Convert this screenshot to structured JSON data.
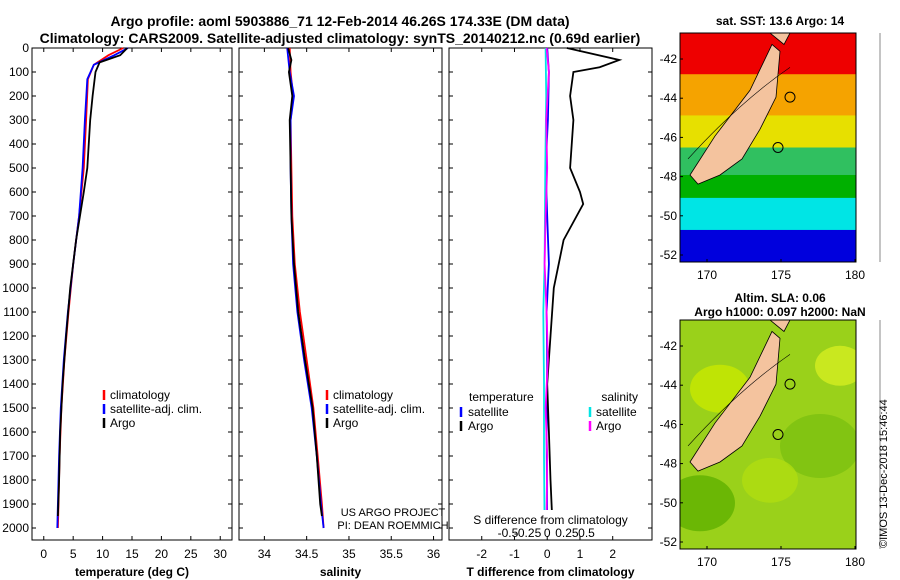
{
  "header": {
    "line1": "Argo profile: aoml 5903886_71 12-Feb-2014 46.26S 174.33E (DM data)",
    "line2": "Climatology: CARS2009. Satellite-adjusted climatology: synTS_20140212.nc (0.69d earlier)"
  },
  "credits": {
    "project": "US ARGO PROJECT",
    "pi": "PI: DEAN ROEMMICH"
  },
  "stamp": "©IMOS 13-Dec-2018 15:46:44",
  "colors": {
    "climatology": "#ff0000",
    "satellite": "#0000ff",
    "argo": "#000000",
    "satellite_salinity": "#00e5e5",
    "argo_salinity": "#ff00ff",
    "land": "#f4c39e"
  },
  "chart_data": [
    {
      "type": "line",
      "xlabel": "temperature (deg C)",
      "xlim": [
        -2,
        32
      ],
      "xticks": [
        0,
        5,
        10,
        15,
        20,
        25,
        30
      ],
      "ylim": [
        0,
        2050
      ],
      "yticks": [
        0,
        100,
        200,
        300,
        400,
        500,
        600,
        700,
        800,
        900,
        1000,
        1100,
        1200,
        1300,
        1400,
        1500,
        1600,
        1700,
        1800,
        1900,
        2000
      ],
      "legend": [
        "climatology",
        "satellite-adj. clim.",
        "Argo"
      ],
      "series": [
        {
          "name": "climatology",
          "color": "#ff0000",
          "points": [
            [
              13.5,
              0
            ],
            [
              11,
              30
            ],
            [
              8.5,
              70
            ],
            [
              7.5,
              130
            ],
            [
              7.2,
              300
            ],
            [
              6.8,
              500
            ],
            [
              6,
              700
            ],
            [
              5,
              900
            ],
            [
              4.2,
              1100
            ],
            [
              3.5,
              1300
            ],
            [
              3,
              1500
            ],
            [
              2.7,
              1700
            ],
            [
              2.5,
              1900
            ],
            [
              2.4,
              2000
            ]
          ]
        },
        {
          "name": "satellite-adj. clim.",
          "color": "#0000ff",
          "points": [
            [
              14.3,
              0
            ],
            [
              12,
              30
            ],
            [
              8.5,
              70
            ],
            [
              7.4,
              130
            ],
            [
              7,
              300
            ],
            [
              6.6,
              500
            ],
            [
              6,
              700
            ],
            [
              5,
              900
            ],
            [
              4.1,
              1100
            ],
            [
              3.4,
              1300
            ],
            [
              2.9,
              1500
            ],
            [
              2.6,
              1700
            ],
            [
              2.4,
              1900
            ],
            [
              2.3,
              2000
            ]
          ]
        },
        {
          "name": "Argo",
          "color": "#000000",
          "points": [
            [
              14.2,
              0
            ],
            [
              13,
              30
            ],
            [
              9.5,
              60
            ],
            [
              8.8,
              100
            ],
            [
              8.3,
              200
            ],
            [
              7.9,
              300
            ],
            [
              7.4,
              500
            ],
            [
              6.8,
              600
            ],
            [
              5.5,
              800
            ],
            [
              4.5,
              1000
            ],
            [
              3.8,
              1200
            ],
            [
              3.2,
              1400
            ],
            [
              2.8,
              1600
            ],
            [
              2.6,
              1800
            ],
            [
              2.4,
              1950
            ]
          ]
        }
      ]
    },
    {
      "type": "line",
      "xlabel": "salinity",
      "xlim": [
        33.7,
        36.1
      ],
      "xticks": [
        34,
        34.5,
        35,
        35.5,
        36
      ],
      "ylim": [
        0,
        2050
      ],
      "legend": [
        "climatology",
        "satellite-adj. clim.",
        "Argo"
      ],
      "series": [
        {
          "name": "climatology",
          "color": "#ff0000",
          "points": [
            [
              34.3,
              0
            ],
            [
              34.31,
              100
            ],
            [
              34.34,
              200
            ],
            [
              34.31,
              300
            ],
            [
              34.32,
              500
            ],
            [
              34.33,
              700
            ],
            [
              34.36,
              900
            ],
            [
              34.42,
              1100
            ],
            [
              34.5,
              1300
            ],
            [
              34.58,
              1500
            ],
            [
              34.63,
              1700
            ],
            [
              34.68,
              1900
            ],
            [
              34.7,
              2000
            ]
          ]
        },
        {
          "name": "satellite-adj. clim.",
          "color": "#0000ff",
          "points": [
            [
              34.27,
              0
            ],
            [
              34.3,
              100
            ],
            [
              34.35,
              200
            ],
            [
              34.31,
              300
            ],
            [
              34.31,
              500
            ],
            [
              34.32,
              700
            ],
            [
              34.34,
              900
            ],
            [
              34.39,
              1100
            ],
            [
              34.47,
              1300
            ],
            [
              34.56,
              1500
            ],
            [
              34.62,
              1700
            ],
            [
              34.67,
              1900
            ],
            [
              34.7,
              2000
            ]
          ]
        },
        {
          "name": "Argo",
          "color": "#000000",
          "points": [
            [
              34.28,
              0
            ],
            [
              34.32,
              50
            ],
            [
              34.29,
              100
            ],
            [
              34.33,
              200
            ],
            [
              34.3,
              300
            ],
            [
              34.31,
              500
            ],
            [
              34.32,
              700
            ],
            [
              34.35,
              900
            ],
            [
              34.4,
              1100
            ],
            [
              34.48,
              1300
            ],
            [
              34.57,
              1500
            ],
            [
              34.62,
              1700
            ],
            [
              34.66,
              1900
            ],
            [
              34.68,
              1950
            ]
          ]
        }
      ]
    },
    {
      "type": "line",
      "xlabel": "T difference from climatology",
      "xlabel_top": "S difference from climatology",
      "xlim": [
        -3,
        3.2
      ],
      "xticks": [
        -2,
        -1,
        0,
        1,
        2
      ],
      "xticks_top": [
        -0.5,
        -0.25,
        0,
        0.25,
        0.5
      ],
      "ylim": [
        0,
        2050
      ],
      "legend_left_title": "temperature",
      "legend_right_title": "salinity",
      "legend_left": [
        "satellite",
        "Argo"
      ],
      "legend_right": [
        "satellite",
        "Argo"
      ],
      "series": [
        {
          "name": "temperature satellite",
          "color": "#0000ff",
          "points": [
            [
              0,
              0
            ],
            [
              0.05,
              100
            ],
            [
              0.02,
              300
            ],
            [
              -0.05,
              500
            ],
            [
              0,
              700
            ],
            [
              0.05,
              900
            ],
            [
              -0.02,
              1100
            ],
            [
              0,
              1300
            ],
            [
              -0.02,
              1600
            ],
            [
              0,
              2000
            ]
          ]
        },
        {
          "name": "temperature Argo",
          "color": "#000000",
          "points": [
            [
              0.6,
              0
            ],
            [
              2.2,
              50
            ],
            [
              1.6,
              80
            ],
            [
              0.8,
              100
            ],
            [
              0.7,
              200
            ],
            [
              0.8,
              300
            ],
            [
              0.7,
              500
            ],
            [
              1,
              600
            ],
            [
              1.1,
              650
            ],
            [
              0.5,
              800
            ],
            [
              0.2,
              1000
            ],
            [
              0.1,
              1200
            ],
            [
              0,
              1400
            ],
            [
              0.05,
              1600
            ],
            [
              0.1,
              1800
            ],
            [
              0.15,
              1950
            ]
          ]
        },
        {
          "name": "salinity satellite",
          "color": "#00e5e5",
          "points": [
            [
              -0.05,
              0
            ],
            [
              -0.03,
              200
            ],
            [
              -0.06,
              500
            ],
            [
              -0.08,
              900
            ],
            [
              -0.12,
              1100
            ],
            [
              -0.1,
              1400
            ],
            [
              -0.1,
              1700
            ],
            [
              -0.08,
              2000
            ]
          ]
        },
        {
          "name": "salinity Argo",
          "color": "#ff00ff",
          "points": [
            [
              -0.02,
              0
            ],
            [
              0.05,
              100
            ],
            [
              -0.03,
              300
            ],
            [
              0,
              500
            ],
            [
              -0.05,
              700
            ],
            [
              -0.08,
              900
            ],
            [
              -0.02,
              1100
            ],
            [
              0.02,
              1300
            ],
            [
              -0.05,
              1500
            ],
            [
              0,
              1700
            ],
            [
              -0.02,
              1950
            ]
          ]
        }
      ]
    }
  ],
  "maps": [
    {
      "title": "sat. SST: 13.6 Argo: 14",
      "title2": "",
      "xticks": [
        "170",
        "175",
        "180"
      ],
      "yticks": [
        "-42",
        "-44",
        "-46",
        "-48",
        "-50",
        "-52"
      ]
    },
    {
      "title": "Altim. SLA: 0.06",
      "title2": "Argo h1000: 0.097 h2000: NaN",
      "xticks": [
        "170",
        "175",
        "180"
      ],
      "yticks": [
        "-42",
        "-44",
        "-46",
        "-48",
        "-50",
        "-52"
      ]
    }
  ]
}
